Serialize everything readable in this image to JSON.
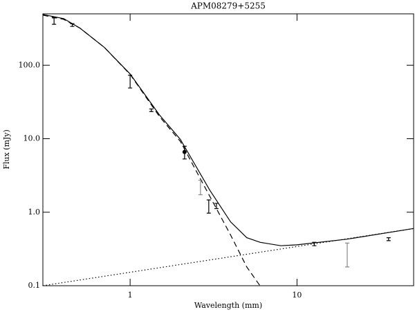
{
  "chart_data": {
    "type": "errorbar",
    "title": "APM08279+5255",
    "x_label": "Wavelength (mm)",
    "y_label": "Flux (mJy)",
    "log_x": true,
    "log_y": true,
    "xlim": [
      0.3,
      50
    ],
    "ylim": [
      0.1,
      500
    ],
    "xticks": [
      1,
      10
    ],
    "yticks": [
      0.1,
      {
        "value": 1,
        "label": "1.0"
      },
      {
        "value": 10,
        "label": "10.0"
      },
      {
        "value": 100,
        "label": "100.0"
      }
    ],
    "points": {
      "x": [
        0.35,
        0.45,
        1.0,
        1.34,
        2.12,
        2.64,
        2.96,
        3.29,
        12.7,
        20.0,
        35.4
      ],
      "values": [
        400,
        352,
        61,
        24.4,
        6.6,
        2.23,
        1.22,
        1.22,
        0.37,
        0.28,
        0.43
      ],
      "errors": [
        40,
        15,
        12,
        1,
        1.3,
        0.5,
        0.25,
        0.1,
        0.02,
        0.1,
        0.02
      ],
      "colors": [
        "#000000",
        "#000000",
        "#000000",
        "#000000",
        "#000000",
        "#888888",
        "#000000",
        "#000000",
        "#000000",
        "#888888",
        "#000000"
      ],
      "markers": [
        "bar",
        "bar",
        "bar",
        "bar",
        "dot",
        "bar",
        "bar",
        "bar",
        "bar",
        "bar",
        "bar"
      ]
    },
    "series": [
      {
        "style": "solid",
        "color": "#000000",
        "x": [
          0.3,
          0.4,
          0.5,
          0.7,
          1,
          1.5,
          2,
          3,
          4,
          5,
          6,
          8,
          10,
          20,
          50
        ],
        "values": [
          490,
          430,
          320,
          175,
          76,
          21,
          9.8,
          2.0,
          0.74,
          0.45,
          0.39,
          0.35,
          0.36,
          0.43,
          0.6
        ]
      },
      {
        "style": "dashed",
        "color": "#000000",
        "x": [
          0.3,
          0.4,
          0.5,
          0.7,
          1,
          1.5,
          2,
          3,
          4,
          5,
          6
        ],
        "values": [
          480,
          420,
          320,
          175,
          75,
          20,
          9.2,
          1.65,
          0.49,
          0.18,
          0.1
        ]
      },
      {
        "style": "dotted",
        "color": "#000000",
        "x": [
          0.3,
          50
        ],
        "values": [
          0.1,
          0.6
        ]
      }
    ]
  }
}
